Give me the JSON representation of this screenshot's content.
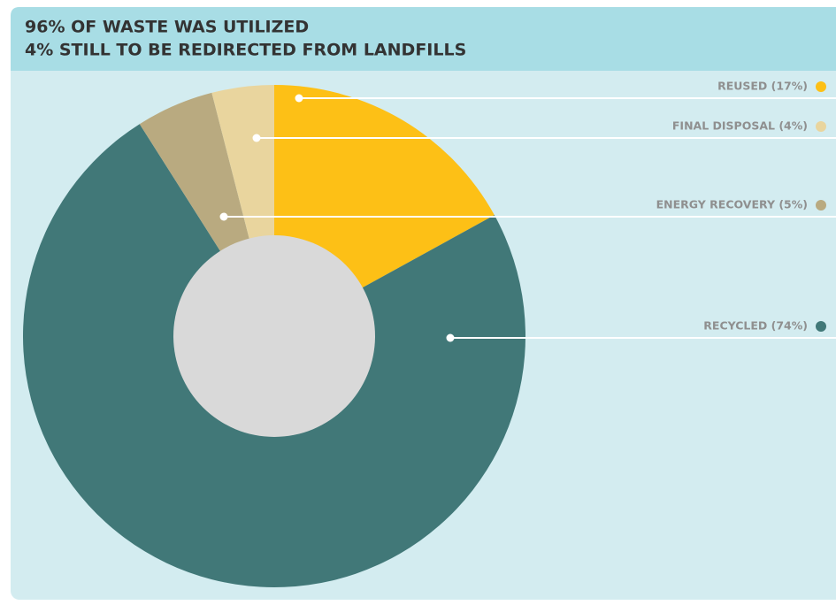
{
  "chart_data": {
    "type": "donut",
    "title": "96% OF WASTE WAS UTILIZED",
    "subtitle": "4% STILL TO BE REDIRECTED FROM LANDFILLS",
    "categories": [
      "REUSED (17%)",
      "RECYCLED (74%)",
      "ENERGY RECOVERY (5%)",
      "FINAL DISPOSAL (4%)"
    ],
    "values": [
      17,
      74,
      5,
      4
    ],
    "colors": [
      "#fdc016",
      "#417878",
      "#b9aa80",
      "#e9d59e"
    ]
  }
}
